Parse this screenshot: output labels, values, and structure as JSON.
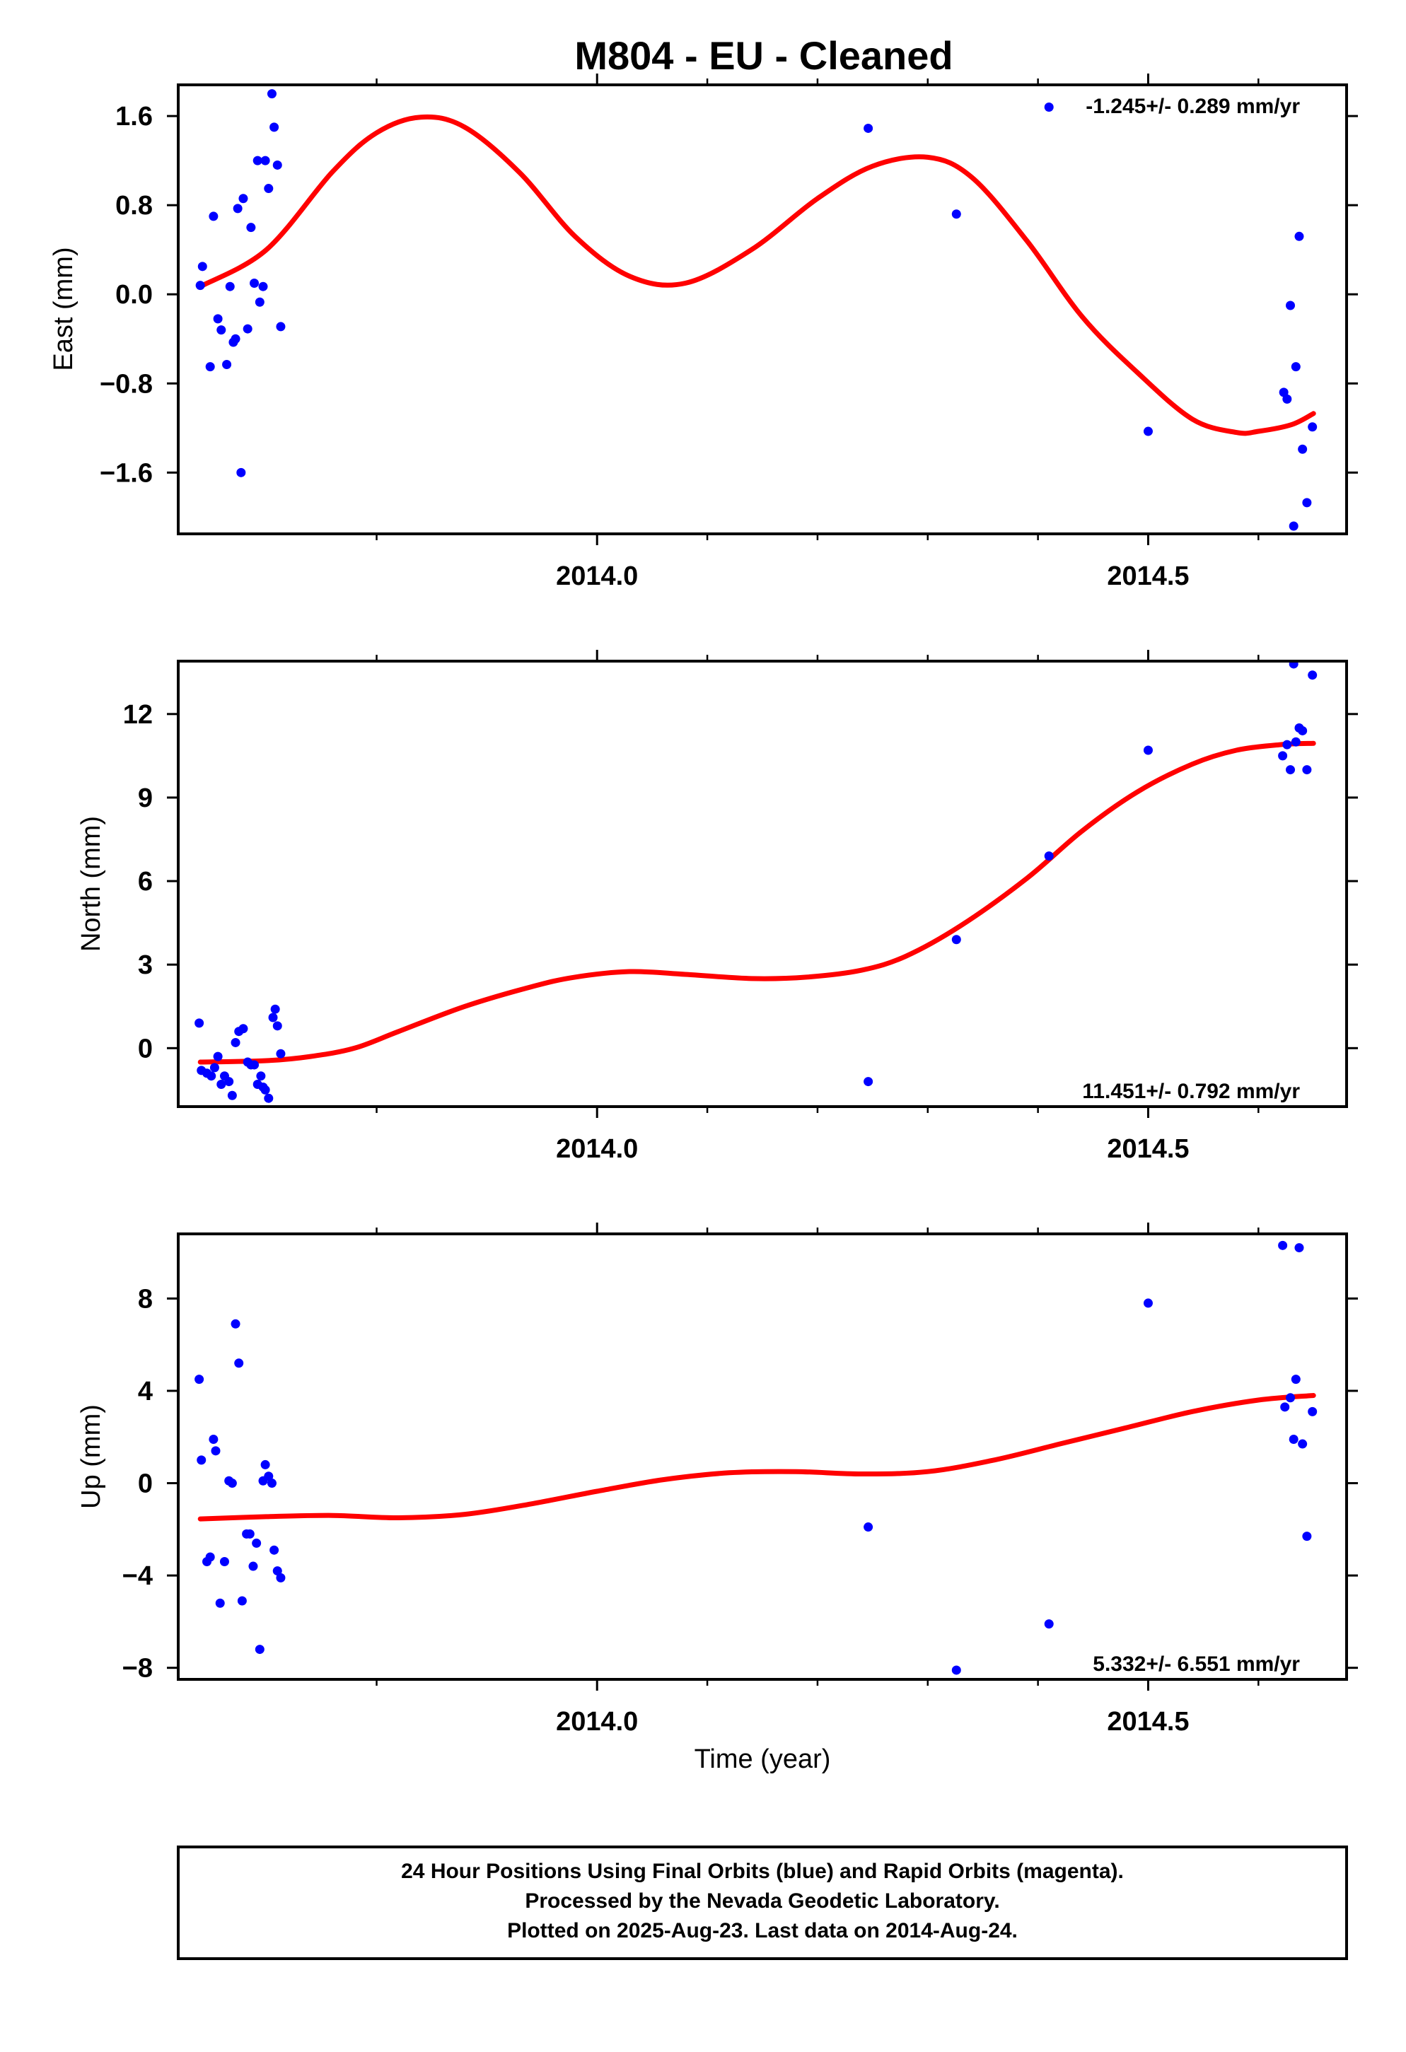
{
  "title": "M804  - EU - Cleaned",
  "xlabel": "Time (year)",
  "footer": {
    "line1": "24 Hour Positions Using Final Orbits (blue) and Rapid Orbits (magenta).",
    "line2": "Processed by the Nevada Geodetic Laboratory.",
    "line3": "Plotted on 2025-Aug-23. Last data on 2014-Aug-24."
  },
  "colors": {
    "points": "#0000ff",
    "fit": "#ff0000",
    "axes": "#000000"
  },
  "chart_data": [
    {
      "type": "scatter",
      "ylabel": "East (mm)",
      "rate_text": "-1.245+/- 0.289 mm/yr",
      "rate_position": "top-right",
      "xlim": [
        2013.62,
        2014.68
      ],
      "ylim": [
        -2.15,
        1.88
      ],
      "xticks": [
        2014.0,
        2014.5
      ],
      "xticklabels": [
        "2014.0",
        "2014.5"
      ],
      "yticks": [
        1.6,
        0.8,
        0.0,
        -0.8,
        -1.6
      ],
      "yticklabels": [
        "1.6",
        "0.8",
        "0.0",
        "−0.8",
        "−1.6"
      ],
      "points": {
        "x": [
          2013.64,
          2013.642,
          2013.649,
          2013.652,
          2013.656,
          2013.659,
          2013.664,
          2013.667,
          2013.67,
          2013.672,
          2013.674,
          2013.677,
          2013.679,
          2013.683,
          2013.686,
          2013.689,
          2013.692,
          2013.694,
          2013.697,
          2013.699,
          2013.702,
          2013.705,
          2013.707,
          2013.71,
          2013.713,
          2014.246,
          2014.326,
          2014.41,
          2014.5,
          2014.623,
          2014.626,
          2014.629,
          2014.632,
          2014.634,
          2014.637,
          2014.64,
          2014.644,
          2014.649
        ],
        "y": [
          0.08,
          0.25,
          -0.65,
          0.7,
          -0.22,
          -0.32,
          -0.63,
          0.07,
          -0.43,
          -0.4,
          0.77,
          -1.6,
          0.86,
          -0.31,
          0.6,
          0.1,
          1.2,
          -0.07,
          0.07,
          1.2,
          0.95,
          1.8,
          1.5,
          1.16,
          -0.29,
          1.49,
          0.72,
          1.68,
          -1.23,
          -0.88,
          -0.94,
          -0.1,
          -2.08,
          -0.65,
          0.52,
          -1.39,
          -1.87,
          -1.19
        ]
      },
      "fit": {
        "x": [
          2013.64,
          2013.7,
          2013.76,
          2013.8,
          2013.84,
          2013.88,
          2013.93,
          2013.98,
          2014.03,
          2014.08,
          2014.14,
          2014.2,
          2014.25,
          2014.3,
          2014.34,
          2014.39,
          2014.44,
          2014.49,
          2014.54,
          2014.58,
          2014.6,
          2014.63,
          2014.65
        ],
        "y": [
          0.07,
          0.4,
          1.1,
          1.45,
          1.59,
          1.5,
          1.09,
          0.52,
          0.16,
          0.1,
          0.4,
          0.86,
          1.15,
          1.23,
          1.05,
          0.48,
          -0.2,
          -0.7,
          -1.12,
          -1.24,
          -1.23,
          -1.17,
          -1.07
        ]
      }
    },
    {
      "type": "scatter",
      "ylabel": "North (mm)",
      "rate_text": "11.451+/- 0.792 mm/yr",
      "rate_position": "bottom-right",
      "xlim": [
        2013.62,
        2014.68
      ],
      "ylim": [
        -2.1,
        13.9
      ],
      "xticks": [
        2014.0,
        2014.5
      ],
      "xticklabels": [
        "2014.0",
        "2014.5"
      ],
      "yticks": [
        12,
        9,
        6,
        3,
        0
      ],
      "yticklabels": [
        "12",
        "9",
        "6",
        "3",
        "0"
      ],
      "points": {
        "x": [
          2013.639,
          2013.641,
          2013.646,
          2013.65,
          2013.653,
          2013.656,
          2013.659,
          2013.662,
          2013.666,
          2013.669,
          2013.672,
          2013.675,
          2013.679,
          2013.683,
          2013.686,
          2013.689,
          2013.692,
          2013.695,
          2013.697,
          2013.699,
          2013.702,
          2013.706,
          2013.708,
          2013.71,
          2013.713,
          2014.246,
          2014.326,
          2014.41,
          2014.5,
          2014.622,
          2014.626,
          2014.629,
          2014.632,
          2014.634,
          2014.637,
          2014.64,
          2014.644,
          2014.649
        ],
        "y": [
          0.9,
          -0.8,
          -0.9,
          -1.0,
          -0.7,
          -0.3,
          -1.3,
          -1.0,
          -1.2,
          -1.7,
          0.2,
          0.6,
          0.7,
          -0.5,
          -0.6,
          -0.6,
          -1.3,
          -1.0,
          -1.4,
          -1.5,
          -1.8,
          1.1,
          1.4,
          0.8,
          -0.2,
          -1.2,
          3.9,
          6.9,
          10.7,
          10.5,
          10.9,
          10.0,
          13.8,
          11.0,
          11.5,
          11.4,
          10.0,
          13.4
        ]
      },
      "fit": {
        "x": [
          2013.64,
          2013.7,
          2013.74,
          2013.78,
          2013.82,
          2013.88,
          2013.94,
          2013.98,
          2014.03,
          2014.08,
          2014.14,
          2014.19,
          2014.24,
          2014.28,
          2014.33,
          2014.39,
          2014.44,
          2014.49,
          2014.54,
          2014.58,
          2014.62,
          2014.65
        ],
        "y": [
          -0.5,
          -0.45,
          -0.3,
          0.0,
          0.6,
          1.5,
          2.2,
          2.55,
          2.75,
          2.65,
          2.5,
          2.55,
          2.8,
          3.3,
          4.4,
          6.1,
          7.8,
          9.2,
          10.2,
          10.7,
          10.9,
          10.95
        ]
      }
    },
    {
      "type": "scatter",
      "ylabel": "Up (mm)",
      "rate_text": "5.332+/- 6.551 mm/yr",
      "rate_position": "bottom-right",
      "xlim": [
        2013.62,
        2014.68
      ],
      "ylim": [
        -8.5,
        10.8
      ],
      "xticks": [
        2014.0,
        2014.5
      ],
      "xticklabels": [
        "2014.0",
        "2014.5"
      ],
      "yticks": [
        8,
        4,
        0,
        -4,
        -8
      ],
      "yticklabels": [
        "8",
        "4",
        "0",
        "−4",
        "−8"
      ],
      "points": {
        "x": [
          2013.639,
          2013.641,
          2013.646,
          2013.649,
          2013.652,
          2013.654,
          2013.658,
          2013.662,
          2013.666,
          2013.669,
          2013.672,
          2013.675,
          2013.678,
          2013.682,
          2013.685,
          2013.688,
          2013.691,
          2013.694,
          2013.697,
          2013.699,
          2013.702,
          2013.705,
          2013.707,
          2013.71,
          2013.713,
          2014.246,
          2014.326,
          2014.41,
          2014.5,
          2014.622,
          2014.624,
          2014.629,
          2014.632,
          2014.634,
          2014.637,
          2014.64,
          2014.644,
          2014.649
        ],
        "y": [
          4.5,
          1.0,
          -3.4,
          -3.2,
          1.9,
          1.4,
          -5.2,
          -3.4,
          0.1,
          0.0,
          6.9,
          5.2,
          -5.1,
          -2.2,
          -2.2,
          -3.6,
          -2.6,
          -7.2,
          0.1,
          0.8,
          0.3,
          0.0,
          -2.9,
          -3.8,
          -4.1,
          -1.9,
          -8.1,
          -6.1,
          7.8,
          10.3,
          3.3,
          3.7,
          1.9,
          4.5,
          10.2,
          1.7,
          -2.3,
          3.1
        ]
      },
      "fit": {
        "x": [
          2013.64,
          2013.7,
          2013.76,
          2013.82,
          2013.88,
          2013.94,
          2014.0,
          2014.06,
          2014.12,
          2014.18,
          2014.24,
          2014.3,
          2014.36,
          2014.42,
          2014.48,
          2014.54,
          2014.6,
          2014.65
        ],
        "y": [
          -1.55,
          -1.45,
          -1.4,
          -1.5,
          -1.35,
          -0.9,
          -0.35,
          0.15,
          0.45,
          0.5,
          0.4,
          0.5,
          1.0,
          1.7,
          2.4,
          3.1,
          3.6,
          3.8
        ]
      }
    }
  ]
}
